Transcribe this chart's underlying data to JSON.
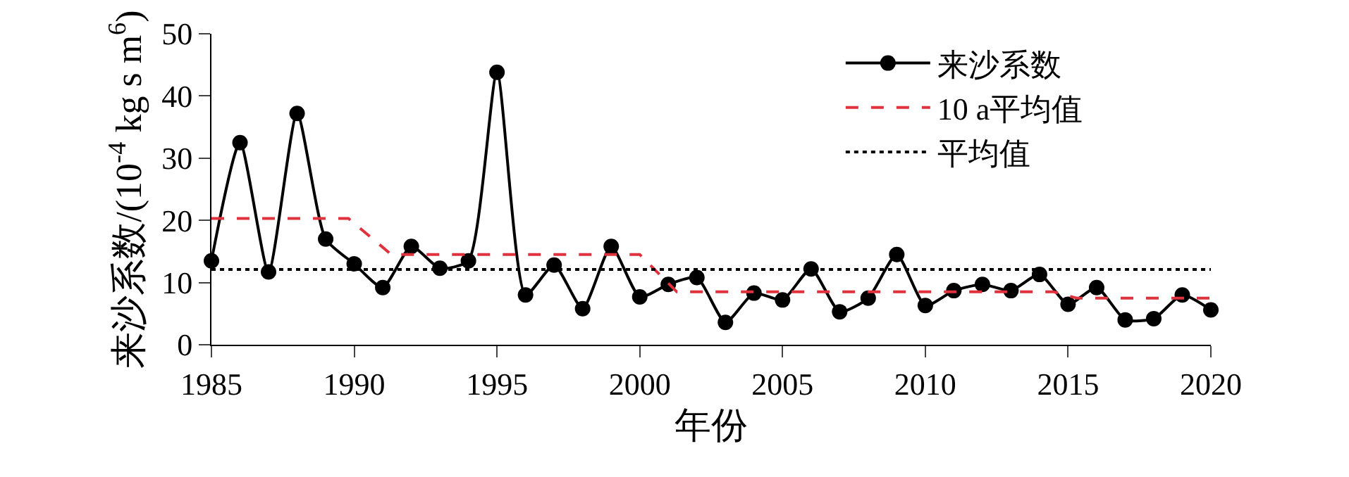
{
  "chart_data": {
    "type": "line",
    "xlabel": "年份",
    "ylabel": "来沙系数/(10$^{-4}$ kg s m$^{6}$)",
    "x": [
      1985,
      1986,
      1987,
      1988,
      1989,
      1990,
      1991,
      1992,
      1993,
      1994,
      1995,
      1996,
      1997,
      1998,
      1999,
      2000,
      2001,
      2002,
      2003,
      2004,
      2005,
      2006,
      2007,
      2008,
      2009,
      2010,
      2011,
      2012,
      2013,
      2014,
      2015,
      2016,
      2017,
      2018,
      2019,
      2020
    ],
    "series": [
      {
        "name": "来沙系数",
        "color": "#000000",
        "marker": "circle",
        "line_style": "solid",
        "values": [
          13.5,
          32.5,
          11.7,
          37.2,
          17,
          13,
          9.2,
          15.8,
          12.3,
          13.5,
          43.8,
          8,
          12.8,
          5.8,
          15.8,
          7.7,
          9.7,
          10.8,
          3.6,
          8.3,
          7.2,
          12.2,
          5.3,
          7.5,
          14.5,
          6.3,
          8.7,
          9.7,
          8.7,
          11.3,
          6.5,
          9.2,
          4,
          4.2,
          8,
          5.6
        ]
      },
      {
        "name": "10 a平均值",
        "color": "#e0323c",
        "marker": "none",
        "line_style": "dashed",
        "x": [
          1985,
          1989.8,
          1991.3,
          2000,
          2001.3,
          2014.5,
          2015.3,
          2020
        ],
        "values": [
          20.3,
          20.3,
          14.5,
          14.5,
          8.5,
          8.5,
          7.5,
          7.5
        ]
      },
      {
        "name": "平均值",
        "color": "#000000",
        "marker": "none",
        "line_style": "dotted",
        "x": [
          1985,
          2020
        ],
        "values": [
          12.1,
          12.1
        ]
      }
    ],
    "xlim": [
      1985,
      2020
    ],
    "xticks": [
      1985,
      1990,
      1995,
      2000,
      2005,
      2010,
      2015,
      2020
    ],
    "ylim": [
      0,
      50
    ],
    "yticks": [
      0,
      10,
      20,
      30,
      40,
      50
    ],
    "grid": false,
    "legend": "top right"
  }
}
